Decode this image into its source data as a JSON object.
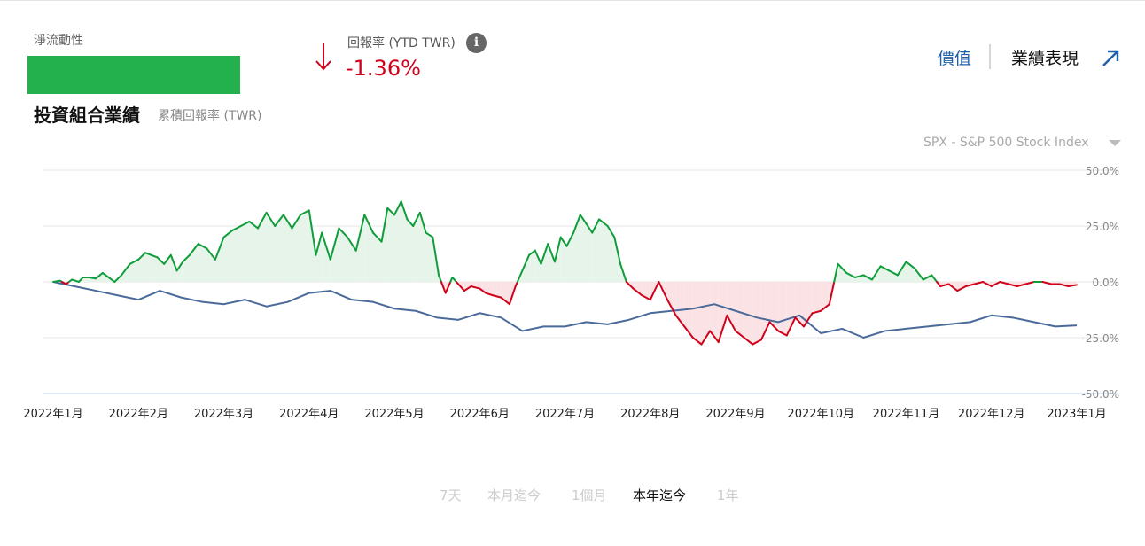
{
  "header": {
    "net_flow_label": "淨流動性",
    "return_label": "回報率 (YTD TWR)",
    "return_value": "-1.36%",
    "info_glyph": "i",
    "tabs": [
      "價值",
      "業績表現"
    ]
  },
  "chart_title": "投資組合業績",
  "chart_subtitle": "累積回報率 (TWR)",
  "benchmark_select": "SPX - S&P 500 Stock Index",
  "colors": {
    "net_flow_bar": "#22b14c",
    "negative": "#d0021b",
    "positive_line": "#0f9d3a",
    "positive_fill": "#e6f4ea",
    "negative_fill": "#fbe3e5",
    "benchmark_line": "#4a6a9a",
    "link": "#1f5fa8"
  },
  "chart_data": {
    "type": "line",
    "x_labels": [
      "2022年1月",
      "2022年2月",
      "2022年3月",
      "2022年4月",
      "2022年5月",
      "2022年6月",
      "2022年7月",
      "2022年8月",
      "2022年9月",
      "2022年10月",
      "2022年11月",
      "2022年12月",
      "2023年1月"
    ],
    "y_ticks": [
      "50.0%",
      "25.0%",
      "0.0%",
      "-25.0%",
      "-50.0%"
    ],
    "ylim": [
      -50,
      50
    ],
    "grid": true,
    "series": [
      {
        "x": [
          0,
          0.08,
          0.15,
          0.22,
          0.3,
          0.35,
          0.42,
          0.5,
          0.58,
          0.65,
          0.72,
          0.8,
          0.9,
          1.0,
          1.08,
          1.15,
          1.22,
          1.3,
          1.38,
          1.45,
          1.52,
          1.6,
          1.7,
          1.8,
          1.9,
          2.0,
          2.1,
          2.2,
          2.3,
          2.4,
          2.5,
          2.6,
          2.7,
          2.8,
          2.9,
          3.0,
          3.08,
          3.15,
          3.25,
          3.35,
          3.45,
          3.55,
          3.65,
          3.75,
          3.85,
          3.92,
          4.0,
          4.08,
          4.15,
          4.22,
          4.3,
          4.37,
          4.45,
          4.52,
          4.6,
          4.68,
          4.75,
          4.82,
          4.9,
          5.0,
          5.07,
          5.15,
          5.25,
          5.35,
          5.42,
          5.5,
          5.58,
          5.65,
          5.72,
          5.8,
          5.88,
          5.95,
          6.02,
          6.1,
          6.18,
          6.25,
          6.32,
          6.4,
          6.5,
          6.58,
          6.65,
          6.72,
          6.8,
          6.9,
          7.0,
          7.1,
          7.2,
          7.3,
          7.4,
          7.5,
          7.6,
          7.7,
          7.8,
          7.9,
          8.0,
          8.1,
          8.2,
          8.3,
          8.4,
          8.5,
          8.6,
          8.7,
          8.8,
          8.9,
          9.0,
          9.1,
          9.2,
          9.3,
          9.4,
          9.5,
          9.6,
          9.7,
          9.8,
          9.9,
          10.0,
          10.1,
          10.2,
          10.3,
          10.4,
          10.5,
          10.6,
          10.7,
          10.8,
          10.9,
          11.0,
          11.1,
          11.2,
          11.3,
          11.4,
          11.5,
          11.6,
          11.7,
          11.8,
          11.9,
          12.0
        ],
        "values": [
          0,
          0.5,
          -1,
          1,
          0,
          2,
          2,
          1.5,
          4,
          2,
          0,
          3,
          8,
          10,
          13,
          12,
          11,
          8,
          12,
          5,
          9,
          12,
          17,
          15,
          10,
          20,
          23,
          25,
          27,
          24,
          31,
          25,
          30,
          24,
          30,
          32,
          12,
          22,
          10,
          24,
          20,
          14,
          30,
          22,
          18,
          33,
          30,
          36,
          28,
          25,
          31,
          22,
          20,
          3,
          -5,
          2,
          -1,
          -4,
          -2,
          -3,
          -5,
          -6,
          -7,
          -10,
          -2,
          5,
          12,
          14,
          8,
          17,
          9,
          20,
          16,
          22,
          30,
          26,
          22,
          28,
          25,
          20,
          8,
          0,
          -3,
          -6,
          -8,
          0,
          -8,
          -15,
          -20,
          -25,
          -28,
          -22,
          -27,
          -15,
          -22,
          -25,
          -28,
          -26,
          -18,
          -22,
          -24,
          -16,
          -20,
          -14,
          -13,
          -10,
          8,
          4,
          2,
          3,
          1,
          7,
          5,
          3,
          9,
          6,
          1,
          3,
          -2,
          -1,
          -4,
          -2,
          -1,
          0,
          -2,
          0,
          -1,
          -2,
          -1,
          0,
          0,
          -1,
          -1,
          -2,
          -1.36
        ],
        "name": ""
      },
      {
        "x": [
          0,
          0.25,
          0.5,
          0.75,
          1.0,
          1.25,
          1.5,
          1.75,
          2.0,
          2.25,
          2.5,
          2.75,
          3.0,
          3.25,
          3.5,
          3.75,
          4.0,
          4.25,
          4.5,
          4.75,
          5.0,
          5.25,
          5.5,
          5.75,
          6.0,
          6.25,
          6.5,
          6.75,
          7.0,
          7.25,
          7.5,
          7.75,
          8.0,
          8.25,
          8.5,
          8.75,
          9.0,
          9.25,
          9.5,
          9.75,
          10.0,
          10.25,
          10.5,
          10.75,
          11.0,
          11.25,
          11.5,
          11.75,
          12.0
        ],
        "values": [
          0,
          -2,
          -4,
          -6,
          -8,
          -4,
          -7,
          -9,
          -10,
          -8,
          -11,
          -9,
          -5,
          -4,
          -8,
          -9,
          -12,
          -13,
          -16,
          -17,
          -14,
          -16,
          -22,
          -20,
          -20,
          -18,
          -19,
          -17,
          -14,
          -13,
          -12,
          -10,
          -13,
          -16,
          -18,
          -15,
          -23,
          -21,
          -25,
          -22,
          -21,
          -20,
          -19,
          -18,
          -15,
          -16,
          -18,
          -20,
          -19.5
        ]
      }
    ]
  },
  "ranges": [
    "7天",
    "本月迄今",
    "1個月",
    "本年迄今",
    "1年"
  ],
  "active_range": "本年迄今"
}
